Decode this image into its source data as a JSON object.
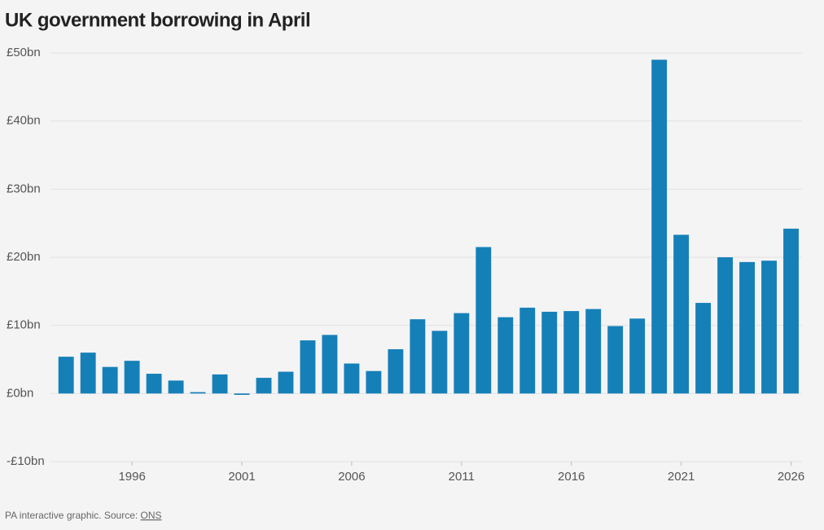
{
  "chart_data": {
    "type": "bar",
    "title": "UK government borrowing in April",
    "x": [
      1993,
      1994,
      1995,
      1996,
      1997,
      1998,
      1999,
      2000,
      2001,
      2002,
      2003,
      2004,
      2005,
      2006,
      2007,
      2008,
      2009,
      2010,
      2011,
      2012,
      2013,
      2014,
      2015,
      2016,
      2017,
      2018,
      2019,
      2020,
      2021,
      2022,
      2023,
      2024,
      2025,
      2026
    ],
    "values": [
      5.4,
      6.0,
      3.9,
      4.8,
      2.9,
      1.9,
      0.2,
      2.8,
      -0.2,
      2.3,
      3.2,
      7.8,
      8.6,
      4.4,
      3.3,
      6.5,
      10.9,
      9.2,
      11.8,
      21.5,
      11.2,
      12.6,
      12.0,
      12.1,
      12.4,
      9.9,
      11.0,
      49.0,
      23.3,
      13.3,
      20.0,
      19.3,
      19.5,
      24.2
    ],
    "color": "#1580b8",
    "xlim": [
      1992.4,
      2026.5
    ],
    "xticks": [
      1996,
      2001,
      2006,
      2011,
      2016,
      2021,
      2026
    ],
    "ylim": [
      -10,
      50
    ],
    "yticks": [
      {
        "value": -10,
        "label": "-£10bn"
      },
      {
        "value": 0,
        "label": "£0bn"
      },
      {
        "value": 10,
        "label": "£10bn"
      },
      {
        "value": 20,
        "label": "£20bn"
      },
      {
        "value": 30,
        "label": "£30bn"
      },
      {
        "value": 40,
        "label": "£40bn"
      },
      {
        "value": 50,
        "label": "£50bn"
      }
    ],
    "grid": true,
    "source_prefix": "PA interactive graphic. Source:",
    "source_link": "ONS"
  }
}
